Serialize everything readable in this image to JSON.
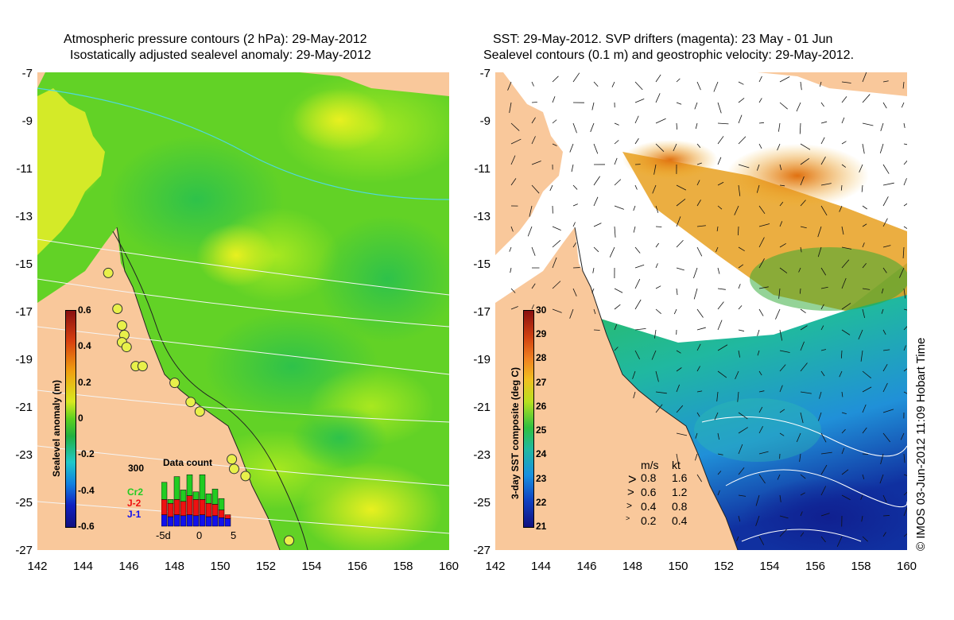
{
  "left_panel": {
    "title_line1": "Atmospheric pressure contours (2 hPa): 29-May-2012",
    "title_line2": "Isostatically adjusted sealevel anomaly: 29-May-2012",
    "y_ticks": [
      "-7",
      "-9",
      "-11",
      "-13",
      "-15",
      "-17",
      "-19",
      "-21",
      "-23",
      "-25",
      "-27"
    ],
    "x_ticks": [
      "142",
      "144",
      "146",
      "148",
      "150",
      "152",
      "154",
      "156",
      "158",
      "160"
    ],
    "colorbar": {
      "title": "Sealevel anomaly (m)",
      "labels": [
        "0.6",
        "0.4",
        "0.2",
        "0",
        "-0.2",
        "-0.4",
        "-0.6"
      ]
    },
    "histogram": {
      "title": "Data count",
      "max_label": "300",
      "series": [
        {
          "name": "Cr2",
          "color": "#22cc22"
        },
        {
          "name": "J-2",
          "color": "#ee1111"
        },
        {
          "name": "J-1",
          "color": "#1111ee"
        }
      ],
      "x_labels": [
        "-5d",
        "0",
        "5"
      ],
      "bars": [
        {
          "j1": 60,
          "j2": 80,
          "cr2": 90
        },
        {
          "j1": 50,
          "j2": 70,
          "cr2": 20
        },
        {
          "j1": 60,
          "j2": 80,
          "cr2": 120
        },
        {
          "j1": 55,
          "j2": 75,
          "cr2": 60
        },
        {
          "j1": 60,
          "j2": 100,
          "cr2": 110
        },
        {
          "j1": 55,
          "j2": 85,
          "cr2": 40
        },
        {
          "j1": 60,
          "j2": 80,
          "cr2": 130
        },
        {
          "j1": 50,
          "j2": 70,
          "cr2": 50
        },
        {
          "j1": 55,
          "j2": 60,
          "cr2": 80
        },
        {
          "j1": 45,
          "j2": 40,
          "cr2": 60
        },
        {
          "j1": 40,
          "j2": 20,
          "cr2": 0
        }
      ],
      "ymax": 300
    },
    "tide_gauges": [
      {
        "lon": 145.1,
        "lat": -15.4
      },
      {
        "lon": 145.5,
        "lat": -16.9
      },
      {
        "lon": 145.7,
        "lat": -17.6
      },
      {
        "lon": 145.8,
        "lat": -18.0
      },
      {
        "lon": 145.7,
        "lat": -18.3
      },
      {
        "lon": 145.9,
        "lat": -18.5
      },
      {
        "lon": 146.3,
        "lat": -19.3
      },
      {
        "lon": 146.6,
        "lat": -19.3
      },
      {
        "lon": 148.0,
        "lat": -20.0
      },
      {
        "lon": 148.7,
        "lat": -20.8
      },
      {
        "lon": 149.1,
        "lat": -21.2
      },
      {
        "lon": 150.5,
        "lat": -23.2
      },
      {
        "lon": 150.6,
        "lat": -23.6
      },
      {
        "lon": 151.1,
        "lat": -23.9
      },
      {
        "lon": 153.0,
        "lat": -26.6
      }
    ]
  },
  "right_panel": {
    "title_line1": "SST: 29-May-2012. SVP drifters (magenta): 23 May - 01 Jun",
    "title_line2": "Sealevel contours (0.1 m) and geostrophic velocity: 29-May-2012.",
    "y_ticks": [
      "-7",
      "-9",
      "-11",
      "-13",
      "-15",
      "-17",
      "-19",
      "-21",
      "-23",
      "-25",
      "-27"
    ],
    "x_ticks": [
      "142",
      "144",
      "146",
      "148",
      "150",
      "152",
      "154",
      "156",
      "158",
      "160"
    ],
    "colorbar": {
      "title": "3-day SST composite (deg C)",
      "labels": [
        "30",
        "29",
        "28",
        "27",
        "26",
        "25",
        "24",
        "23",
        "22",
        "21"
      ]
    },
    "velocity_legend": {
      "header_ms": "m/s",
      "header_kt": "kt",
      "rows": [
        {
          "ms": "0.8",
          "kt": "1.6"
        },
        {
          "ms": "0.6",
          "kt": "1.2"
        },
        {
          "ms": "0.4",
          "kt": "0.8"
        },
        {
          "ms": "0.2",
          "kt": "0.4"
        }
      ]
    }
  },
  "credit": "© IMOS 03-Jun-2012 11:09 Hobart Time",
  "colors": {
    "land": "#f9c89b",
    "ocean_green": "#55d81e",
    "ocean_yellow": "#d8f020",
    "ocean_blue": "#2a9ad8",
    "gauge": "#e8f04a"
  }
}
